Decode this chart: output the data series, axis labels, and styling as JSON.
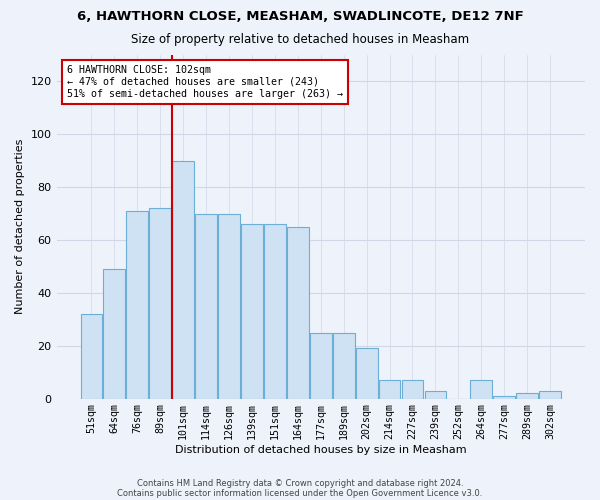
{
  "title": "6, HAWTHORN CLOSE, MEASHAM, SWADLINCOTE, DE12 7NF",
  "subtitle": "Size of property relative to detached houses in Measham",
  "xlabel": "Distribution of detached houses by size in Measham",
  "ylabel": "Number of detached properties",
  "categories": [
    "51sqm",
    "64sqm",
    "76sqm",
    "89sqm",
    "101sqm",
    "114sqm",
    "126sqm",
    "139sqm",
    "151sqm",
    "164sqm",
    "177sqm",
    "189sqm",
    "202sqm",
    "214sqm",
    "227sqm",
    "239sqm",
    "252sqm",
    "264sqm",
    "277sqm",
    "289sqm",
    "302sqm"
  ],
  "bar_values": [
    32,
    49,
    71,
    72,
    90,
    70,
    70,
    66,
    66,
    65,
    25,
    25,
    19,
    7,
    7,
    3,
    0,
    7,
    1,
    2,
    3
  ],
  "bar_color": "#cfe2f3",
  "bar_edge_color": "#6baed6",
  "vline_index": 3.5,
  "vline_color": "#cc0000",
  "annotation_text": "6 HAWTHORN CLOSE: 102sqm\n← 47% of detached houses are smaller (243)\n51% of semi-detached houses are larger (263) →",
  "annotation_box_color": "#ffffff",
  "annotation_box_edge": "#cc0000",
  "ylim": [
    0,
    130
  ],
  "yticks": [
    0,
    20,
    40,
    60,
    80,
    100,
    120
  ],
  "footer_line1": "Contains HM Land Registry data © Crown copyright and database right 2024.",
  "footer_line2": "Contains public sector information licensed under the Open Government Licence v3.0.",
  "background_color": "#eef2fb",
  "grid_color": "#d0d8e8"
}
